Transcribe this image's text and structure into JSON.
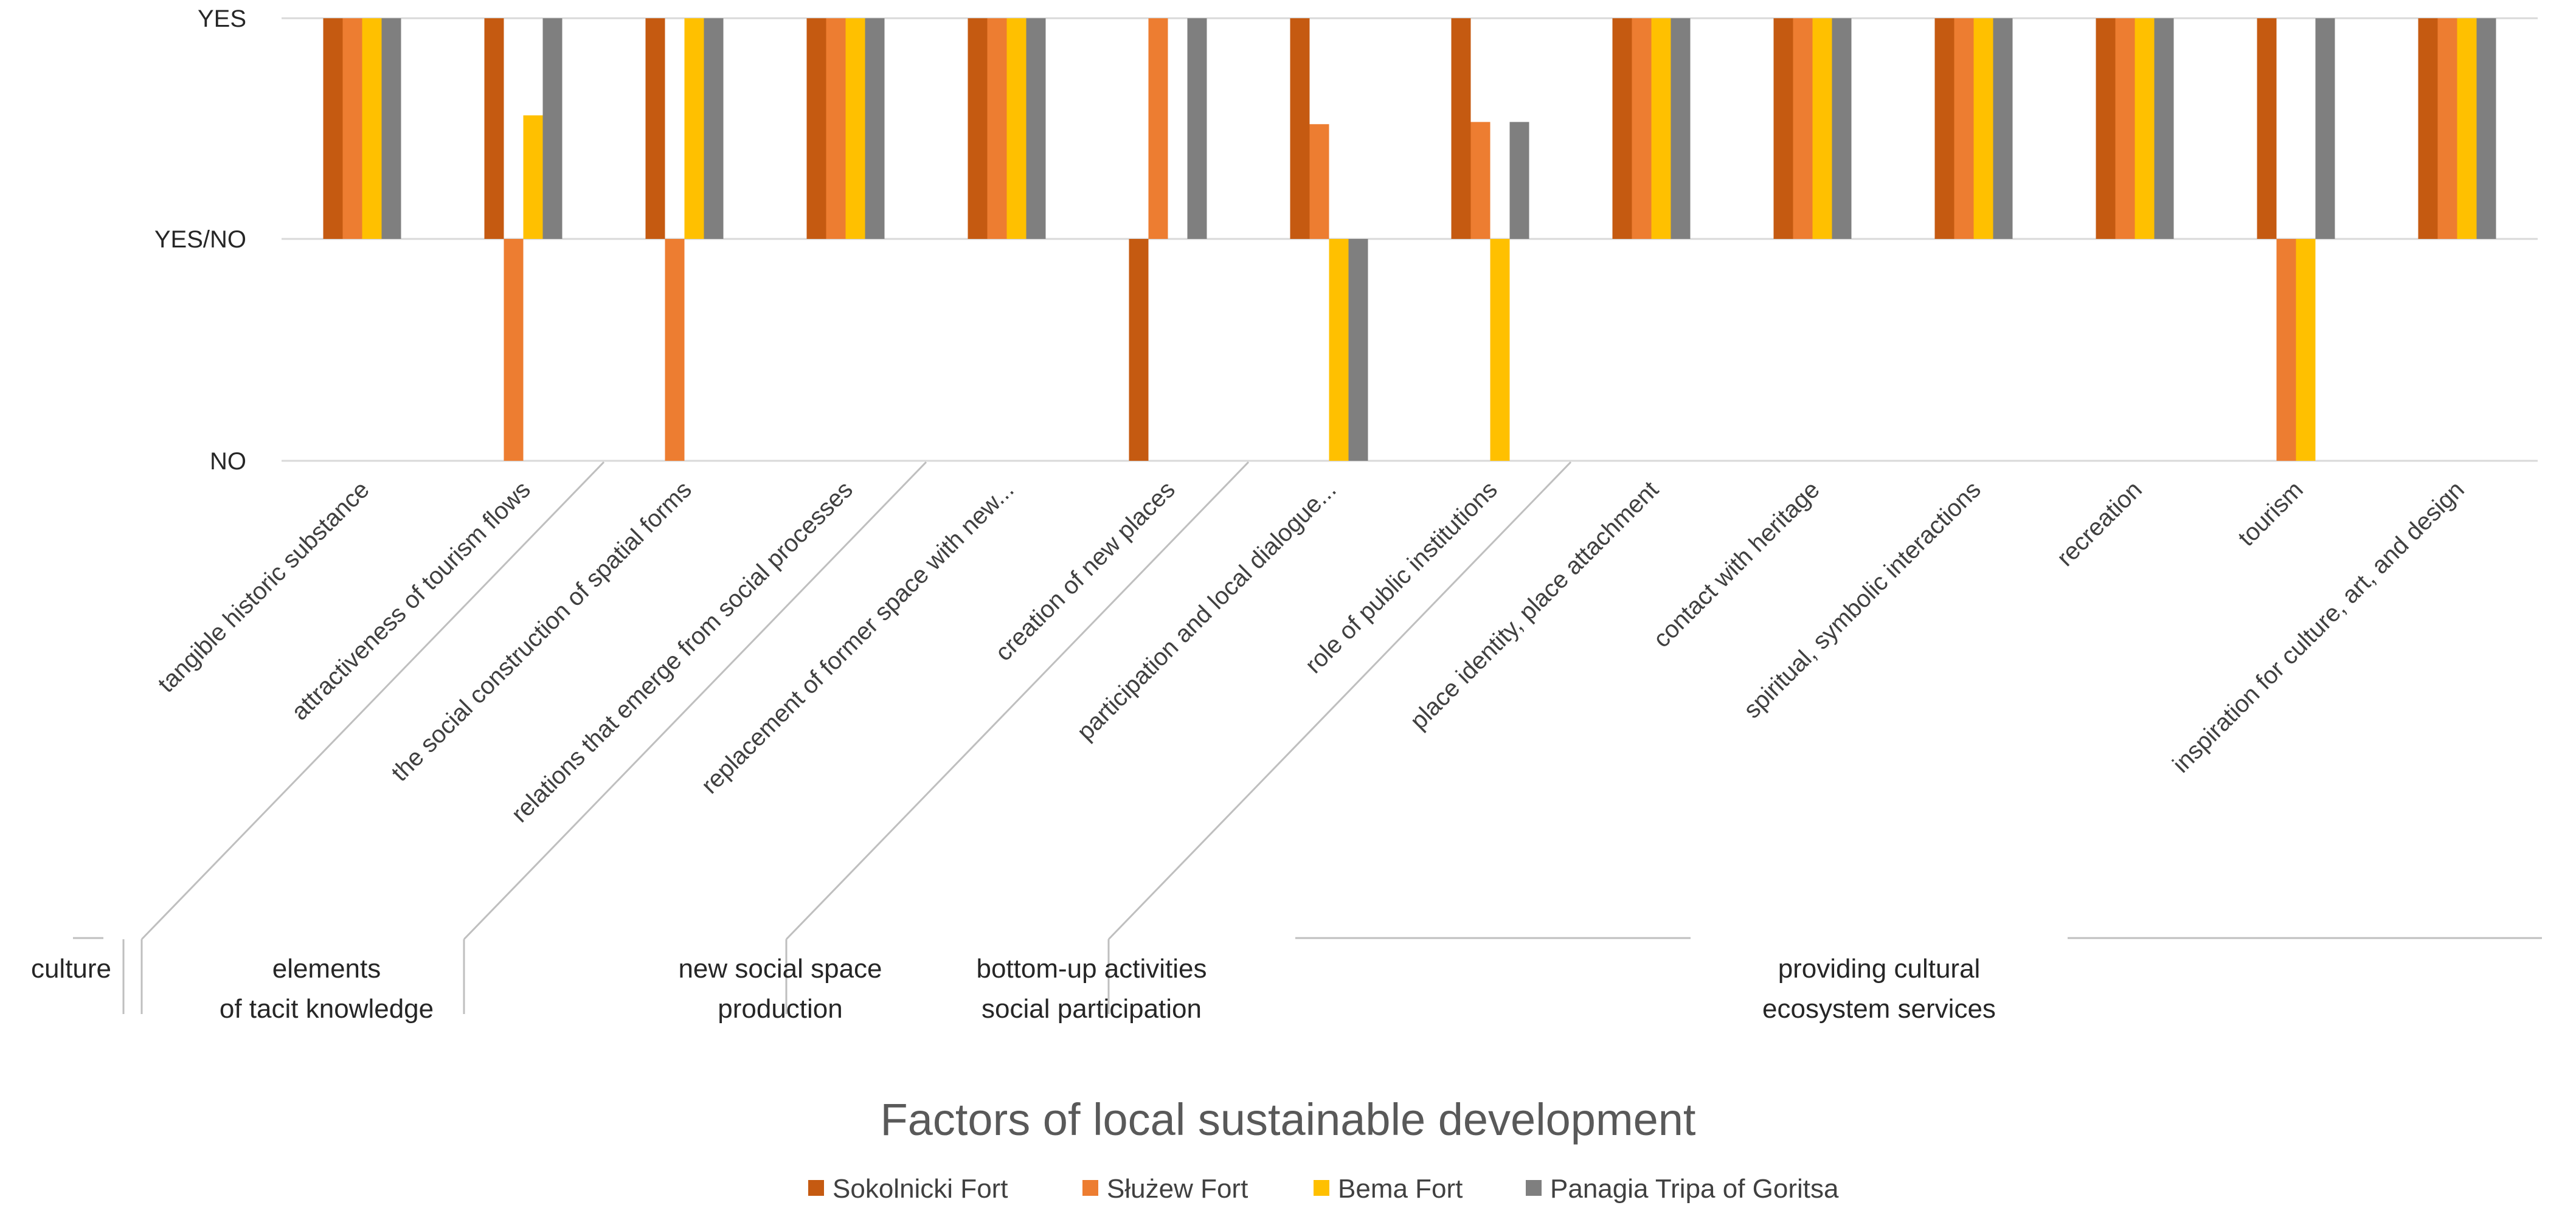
{
  "chart_data": {
    "type": "bar",
    "title": "",
    "xlabel": "Factors of local sustainable development",
    "ylabel": "",
    "y_ticks": [
      {
        "value": 1,
        "label": "YES"
      },
      {
        "value": 0,
        "label": "YES/NO"
      },
      {
        "value": -1,
        "label": "NO"
      }
    ],
    "ylim": [
      -1,
      1
    ],
    "grid": "horizontal",
    "legend_position": "bottom",
    "categories": [
      "tangible historic substance",
      "attractiveness of tourism flows",
      "the social construction of spatial forms",
      "relations that emerge from social processes",
      "replacement of former space with new...",
      "creation of new places",
      "participation and local dialogue...",
      "role of public institutions",
      "place identity, place attachment",
      "contact with heritage",
      "spiritual, symbolic interactions",
      "recreation",
      "tourism",
      "inspiration for culture, art, and design"
    ],
    "groups": [
      {
        "lines": [
          "culture"
        ],
        "start": 0,
        "count": 2
      },
      {
        "lines": [
          "elements",
          "of tacit knowledge"
        ],
        "start": 2,
        "count": 2
      },
      {
        "lines": [
          "new social space",
          "production"
        ],
        "start": 4,
        "count": 2
      },
      {
        "lines": [
          "bottom-up activities",
          "social participation"
        ],
        "start": 6,
        "count": 2
      },
      {
        "lines": [
          "providing cultural",
          "ecosystem services"
        ],
        "start": 8,
        "count": 6
      }
    ],
    "series": [
      {
        "name": "Sokolnicki Fort",
        "color": "#C55A11",
        "values": [
          1,
          1,
          1,
          1,
          1,
          -1,
          1,
          1,
          1,
          1,
          1,
          1,
          1,
          1
        ]
      },
      {
        "name": "Służew Fort",
        "color": "#ED7D31",
        "values": [
          1,
          -1,
          -1,
          1,
          1,
          1,
          0.52,
          0.53,
          1,
          1,
          1,
          1,
          -1,
          1
        ]
      },
      {
        "name": "Bema Fort",
        "color": "#FFC000",
        "values": [
          1,
          0.56,
          1,
          1,
          1,
          0,
          -1,
          -1,
          1,
          1,
          1,
          1,
          -1,
          1
        ]
      },
      {
        "name": "Panagia Tripa of Goritsa",
        "color": "#7F7F7F",
        "values": [
          1,
          1,
          1,
          1,
          1,
          1,
          -1,
          0.53,
          1,
          1,
          1,
          1,
          1,
          1
        ]
      }
    ]
  }
}
